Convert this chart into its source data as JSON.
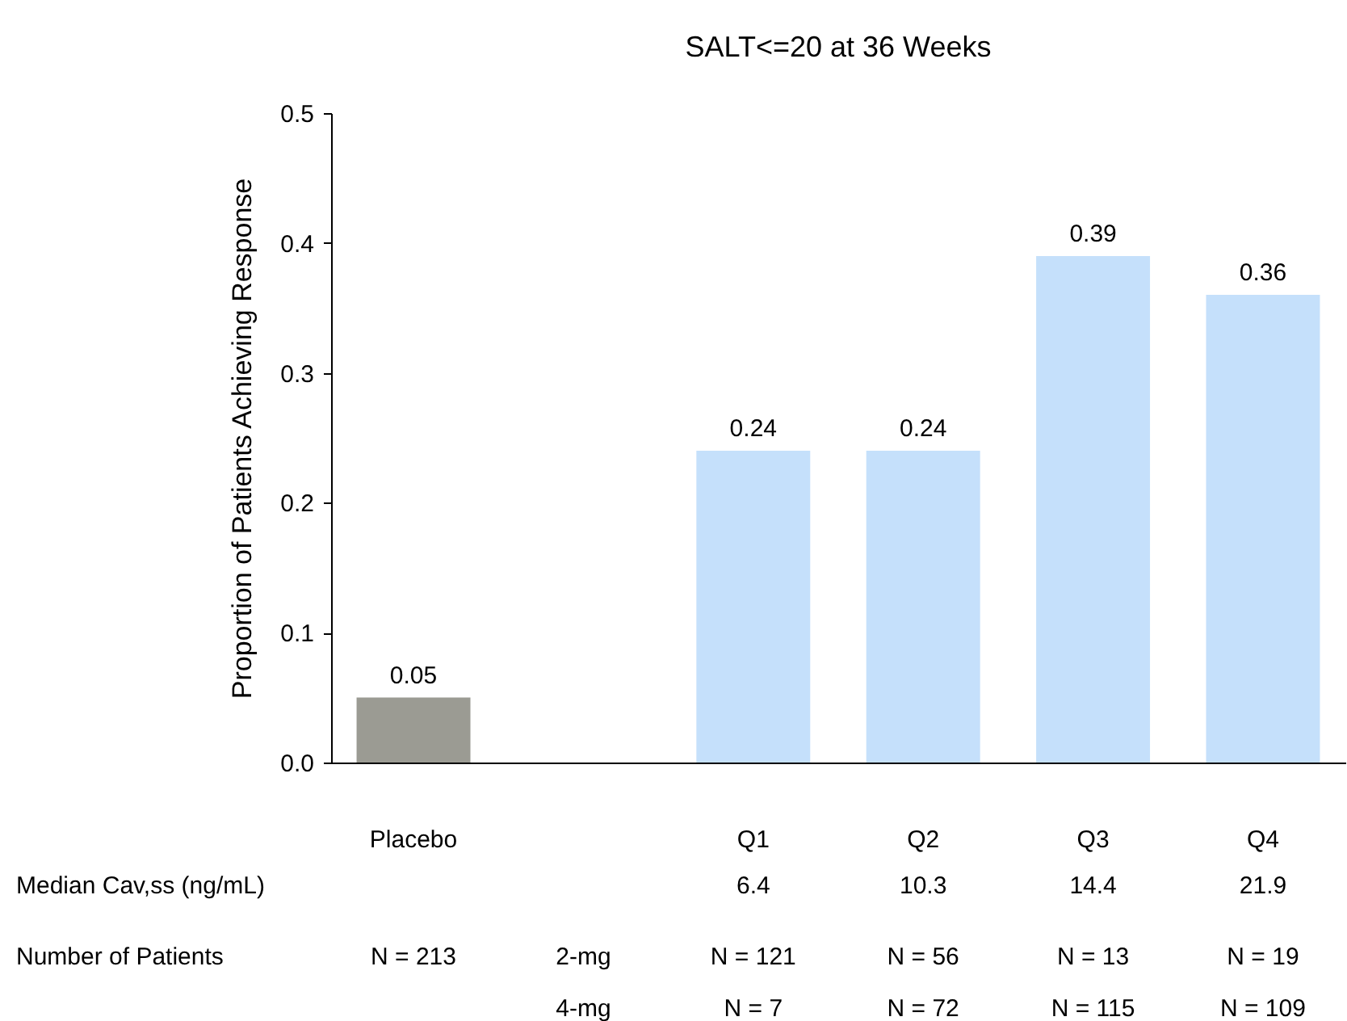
{
  "chart_data": {
    "type": "bar",
    "title": "SALT<=20 at 36 Weeks",
    "ylabel": "Proportion of Patients Achieving Response",
    "categories": [
      "Placebo",
      null,
      "Q1",
      "Q2",
      "Q3",
      "Q4"
    ],
    "values": [
      0.05,
      null,
      0.24,
      0.24,
      0.39,
      0.36
    ],
    "colors": [
      "#9b9b93",
      "#c5e0fb",
      "#c5e0fb",
      "#c5e0fb",
      "#c5e0fb",
      "#c5e0fb"
    ],
    "ylim": [
      0,
      0.5
    ],
    "yticks": [
      {
        "value": 0,
        "label": "0.0"
      },
      0.1,
      0.2,
      0.3,
      0.4,
      0.5
    ],
    "data_labels": true,
    "grid": false,
    "annotations": [
      "Median Cav,ss (ng/mL)",
      "6.4",
      "10.3",
      "14.4",
      "21.9",
      "Number of Patients",
      "N = 213",
      "2-mg",
      "N = 121",
      "N = 56",
      "N = 13",
      "N = 19",
      "4-mg",
      "N = 7",
      "N = 72",
      "N = 115",
      "N = 109"
    ]
  }
}
